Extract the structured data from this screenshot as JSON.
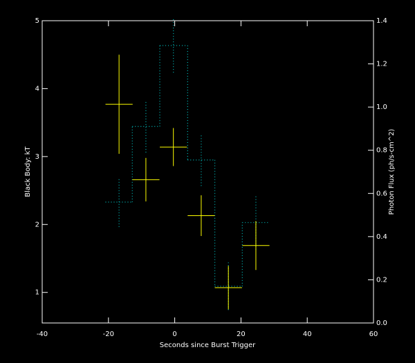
{
  "chart_data": {
    "type": "errorbar",
    "xlabel": "Seconds since Burst Trigger",
    "ylabel": "Black Body: kT",
    "y2label": "Photon Flux (ph/s-cm^2)",
    "x": [
      -16.8,
      -8.7,
      -0.4,
      8.0,
      16.2,
      24.5
    ],
    "xerr": [
      4.1,
      4.1,
      4.1,
      4.1,
      4.1,
      4.1
    ],
    "xlim": [
      -40,
      60
    ],
    "xticks": [
      -40,
      -20,
      0,
      20,
      40,
      60
    ],
    "ylim": [
      0.55,
      5
    ],
    "yticks": [
      1,
      2,
      3,
      4,
      5
    ],
    "y2lim": [
      0,
      1.4
    ],
    "y2ticks": [
      {
        "value": 0,
        "label": "0.0"
      },
      0.2,
      0.4,
      0.6,
      0.8,
      {
        "value": 1,
        "label": "1.0"
      },
      1.2,
      1.4
    ],
    "series": [
      {
        "style": "steps",
        "color": "#00b4b4",
        "axis": "y2",
        "values": [
          0.56,
          0.91,
          1.285,
          0.755,
          0.17,
          0.465
        ],
        "errors": [
          0.115,
          0.12,
          0.125,
          0.12,
          0.11,
          0.125
        ]
      },
      {
        "style": "cross",
        "color": "#ffff00",
        "values": [
          3.77,
          2.66,
          3.14,
          2.13,
          1.07,
          1.69
        ],
        "errors": [
          0.73,
          0.32,
          0.28,
          0.3,
          0.32,
          0.36
        ]
      }
    ]
  }
}
